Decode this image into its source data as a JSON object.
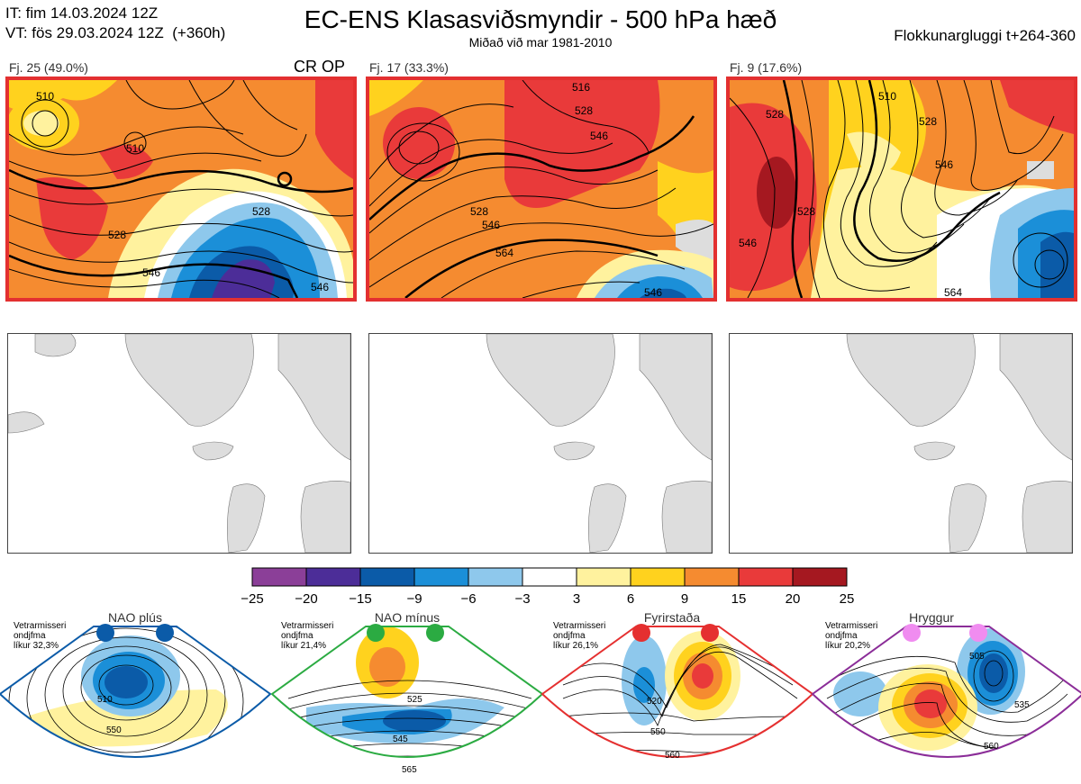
{
  "header": {
    "it": "IT: fim 14.03.2024 12Z",
    "vt": "VT: fös 29.03.2024 12Z  (+360h)",
    "title": "EC-ENS Klasasviðsmyndir - 500 hPa hæð",
    "subtitle": "Miðað við mar 1981-2010",
    "window": "Flokkunargluggi t+264-360"
  },
  "panels": [
    {
      "label": "Fj. 25 (49.0%)",
      "tag": "CR OP",
      "contours": [
        "510",
        "510",
        "528",
        "528",
        "546",
        "546"
      ]
    },
    {
      "label": "Fj. 17 (33.3%)",
      "tag": "",
      "contours": [
        "516",
        "528",
        "546",
        "528",
        "546",
        "564",
        "546"
      ]
    },
    {
      "label": "Fj. 9 (17.6%)",
      "tag": "",
      "contours": [
        "528",
        "510",
        "528",
        "546",
        "546",
        "528",
        "564"
      ]
    }
  ],
  "chart_data": {
    "type": "heatmap",
    "title": "EC-ENS Klasasviðsmyndir - 500 hPa hæð",
    "colorbar": {
      "ticks": [
        "−25",
        "−20",
        "−15",
        "−9",
        "−6",
        "−3",
        "3",
        "6",
        "9",
        "15",
        "20",
        "25"
      ],
      "colors": [
        "#8b3f98",
        "#4c2d98",
        "#0b5ba8",
        "#1b8fd8",
        "#8ec8ec",
        "#ffffff",
        "#fff29e",
        "#ffd21e",
        "#f58b30",
        "#e93a3a",
        "#a51820"
      ]
    },
    "clusters": [
      {
        "label": "Fj. 25 (49.0%)",
        "count": 25,
        "percent": 49.0
      },
      {
        "label": "Fj. 17 (33.3%)",
        "count": 17,
        "percent": 33.3
      },
      {
        "label": "Fj. 9 (17.6%)",
        "count": 9,
        "percent": 17.6
      }
    ],
    "regimes": [
      {
        "name": "NAO plús",
        "note1": "Vetrarmisseri",
        "note2": "ondjfma",
        "note3": "líkur 32,3%",
        "color": "#0b5ba8",
        "dotColor": "#0b5ba8",
        "contours": [
          "510",
          "550"
        ]
      },
      {
        "name": "NAO mínus",
        "note1": "Vetrarmisseri",
        "note2": "ondjfma",
        "note3": "líkur 21,4%",
        "color": "#2bab42",
        "dotColor": "#2bab42",
        "contours": [
          "525",
          "545",
          "565"
        ]
      },
      {
        "name": "Fyrirstaða",
        "note1": "Vetrarmisseri",
        "note2": "ondjfma",
        "note3": "líkur 26,1%",
        "color": "#e53030",
        "dotColor": "#e53030",
        "contours": [
          "520",
          "550",
          "560"
        ]
      },
      {
        "name": "Hryggur",
        "note1": "Vetrarmisseri",
        "note2": "ondjfma",
        "note3": "líkur 20,2%",
        "color": "#8b2d98",
        "dotColor": "#f08cf0",
        "contours": [
          "505",
          "535",
          "560"
        ]
      }
    ]
  }
}
